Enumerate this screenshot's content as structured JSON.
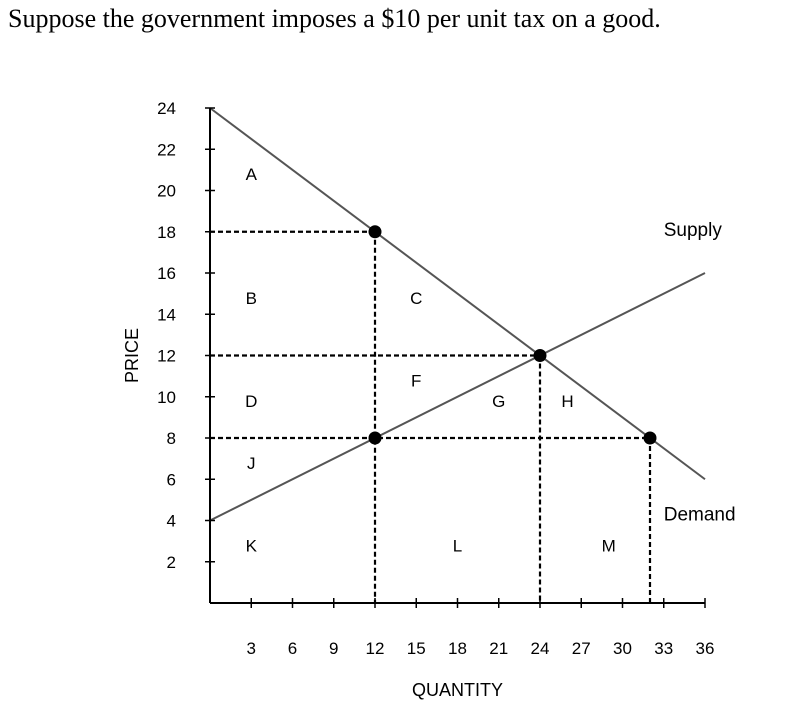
{
  "question": "Suppose the government imposes a $10 per unit tax on a good.",
  "chart_data": {
    "type": "line",
    "xlabel": "QUANTITY",
    "ylabel": "PRICE",
    "xlim": [
      0,
      36
    ],
    "ylim": [
      0,
      24
    ],
    "x_ticks": [
      3,
      6,
      9,
      12,
      15,
      18,
      21,
      24,
      27,
      30,
      33,
      36
    ],
    "y_ticks": [
      2,
      4,
      6,
      8,
      10,
      12,
      14,
      16,
      18,
      20,
      22,
      24
    ],
    "series": [
      {
        "name": "Supply",
        "x": [
          0,
          36
        ],
        "y": [
          4,
          16
        ]
      },
      {
        "name": "Demand",
        "x": [
          0,
          36
        ],
        "y": [
          24,
          6
        ]
      }
    ],
    "points": [
      {
        "x": 12,
        "y": 18
      },
      {
        "x": 12,
        "y": 8
      },
      {
        "x": 24,
        "y": 12
      },
      {
        "x": 32,
        "y": 8
      }
    ],
    "guides": [
      {
        "h": 18,
        "to_x": 12
      },
      {
        "h": 12,
        "to_x": 24
      },
      {
        "h": 8,
        "to_x": 32
      },
      {
        "v": 12,
        "from_y": 18
      },
      {
        "v": 24,
        "from_y": 12
      },
      {
        "v": 32,
        "from_y": 8
      }
    ],
    "regions": [
      {
        "label": "A",
        "x": 3,
        "y": 20.5
      },
      {
        "label": "B",
        "x": 3,
        "y": 14.5
      },
      {
        "label": "C",
        "x": 15,
        "y": 14.5
      },
      {
        "label": "D",
        "x": 3,
        "y": 9.5
      },
      {
        "label": "F",
        "x": 15,
        "y": 10.5
      },
      {
        "label": "G",
        "x": 21,
        "y": 9.5
      },
      {
        "label": "H",
        "x": 26,
        "y": 9.5
      },
      {
        "label": "J",
        "x": 3,
        "y": 6.5
      },
      {
        "label": "K",
        "x": 3,
        "y": 2.5
      },
      {
        "label": "L",
        "x": 18,
        "y": 2.5
      },
      {
        "label": "M",
        "x": 29,
        "y": 2.5
      }
    ],
    "curve_labels": [
      {
        "text": "Supply",
        "x": 33,
        "y": 17.8
      },
      {
        "text": "Demand",
        "x": 33,
        "y": 4
      }
    ]
  }
}
